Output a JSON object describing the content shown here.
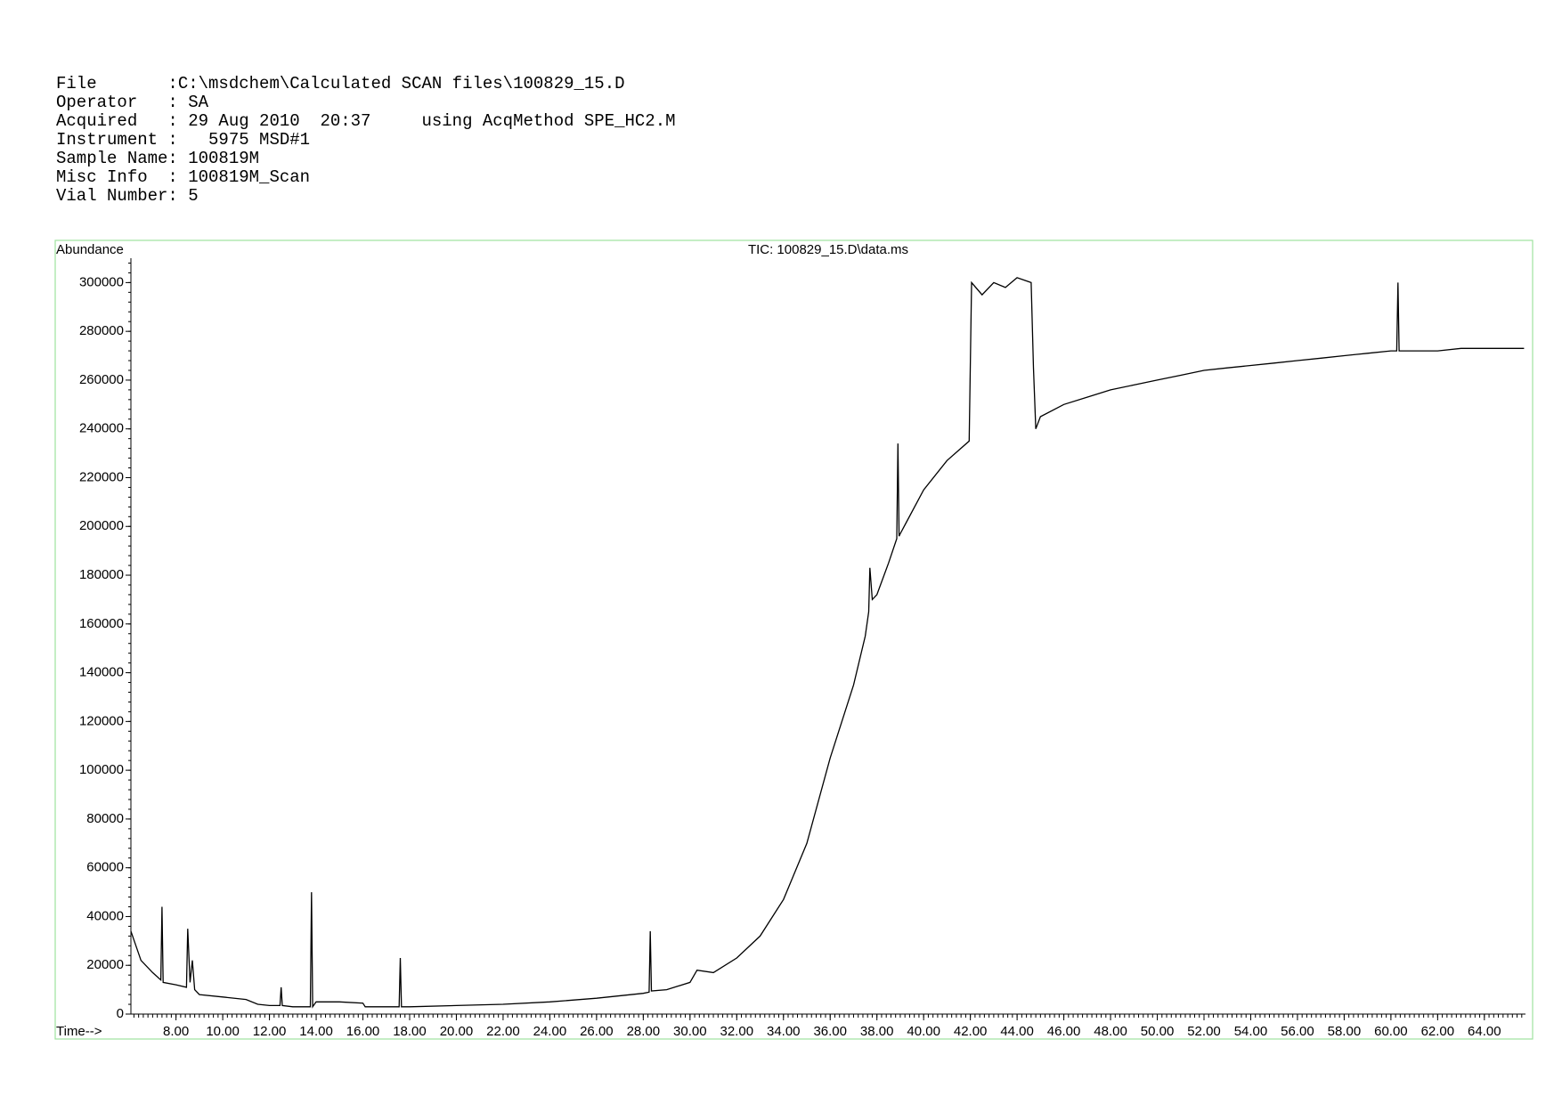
{
  "header": {
    "lines": [
      "File       :C:\\msdchem\\Calculated SCAN files\\100829_15.D",
      "Operator   : SA",
      "Acquired   : 29 Aug 2010  20:37     using AcqMethod SPE_HC2.M",
      "Instrument :   5975 MSD#1",
      "Sample Name: 100819M",
      "Misc Info  : 100819M_Scan",
      "Vial Number: 5"
    ]
  },
  "chart_data": {
    "type": "line",
    "title": "TIC: 100829_15.D\\data.ms",
    "y_label": "Abundance",
    "x_label": "Time-->",
    "color": "#000000",
    "frame_color": "#9ee39e",
    "label_color": "#2b2bd0",
    "xlim": [
      6.07,
      65.76
    ],
    "ylim": [
      0,
      310000
    ],
    "xticks": [
      {
        "value": 8,
        "label": "8.00"
      },
      {
        "value": 10,
        "label": "10.00"
      },
      {
        "value": 12,
        "label": "12.00"
      },
      {
        "value": 14,
        "label": "14.00"
      },
      {
        "value": 16,
        "label": "16.00"
      },
      {
        "value": 18,
        "label": "18.00"
      },
      {
        "value": 20,
        "label": "20.00"
      },
      {
        "value": 22,
        "label": "22.00"
      },
      {
        "value": 24,
        "label": "24.00"
      },
      {
        "value": 26,
        "label": "26.00"
      },
      {
        "value": 28,
        "label": "28.00"
      },
      {
        "value": 30,
        "label": "30.00"
      },
      {
        "value": 32,
        "label": "32.00"
      },
      {
        "value": 34,
        "label": "34.00"
      },
      {
        "value": 36,
        "label": "36.00"
      },
      {
        "value": 38,
        "label": "38.00"
      },
      {
        "value": 40,
        "label": "40.00"
      },
      {
        "value": 42,
        "label": "42.00"
      },
      {
        "value": 44,
        "label": "44.00"
      },
      {
        "value": 46,
        "label": "46.00"
      },
      {
        "value": 48,
        "label": "48.00"
      },
      {
        "value": 50,
        "label": "50.00"
      },
      {
        "value": 52,
        "label": "52.00"
      },
      {
        "value": 54,
        "label": "54.00"
      },
      {
        "value": 56,
        "label": "56.00"
      },
      {
        "value": 58,
        "label": "58.00"
      },
      {
        "value": 60,
        "label": "60.00"
      },
      {
        "value": 62,
        "label": "62.00"
      },
      {
        "value": 64,
        "label": "64.00"
      }
    ],
    "yticks": [
      0,
      20000,
      40000,
      60000,
      80000,
      100000,
      120000,
      140000,
      160000,
      180000,
      200000,
      220000,
      240000,
      260000,
      280000,
      300000
    ],
    "x": [
      6.07,
      6.5,
      7.0,
      7.35,
      7.4,
      7.45,
      8.0,
      8.45,
      8.5,
      8.6,
      8.7,
      8.8,
      9.0,
      10.0,
      11.0,
      11.5,
      12.0,
      12.45,
      12.5,
      12.55,
      13.0,
      13.75,
      13.8,
      13.85,
      14.0,
      15.0,
      16.0,
      16.1,
      17.0,
      17.55,
      17.6,
      17.65,
      18.0,
      20.0,
      22.0,
      24.0,
      26.0,
      28.0,
      28.25,
      28.3,
      28.35,
      29.0,
      30.0,
      30.3,
      31.0,
      32.0,
      33.0,
      34.0,
      35.0,
      36.0,
      37.0,
      37.5,
      37.65,
      37.7,
      37.8,
      38.0,
      38.5,
      38.85,
      38.9,
      38.95,
      39.0,
      40.0,
      41.0,
      41.95,
      42.05,
      42.5,
      43.0,
      43.5,
      44.0,
      44.6,
      44.7,
      44.8,
      45.0,
      46.0,
      47.0,
      48.0,
      49.0,
      50.0,
      51.0,
      52.0,
      53.0,
      54.0,
      55.0,
      56.0,
      57.0,
      58.0,
      59.0,
      60.0,
      60.25,
      60.3,
      60.35,
      61.0,
      62.0,
      63.0,
      64.0,
      65.0,
      65.7
    ],
    "values": [
      34000,
      22000,
      17000,
      14000,
      44000,
      13000,
      12000,
      11000,
      35000,
      13000,
      22000,
      10000,
      8000,
      7000,
      6000,
      4000,
      3500,
      3500,
      11000,
      3500,
      3000,
      3000,
      50000,
      3000,
      5000,
      5000,
      4500,
      3000,
      3000,
      3000,
      23000,
      3000,
      3000,
      3500,
      4000,
      5000,
      6500,
      8500,
      9000,
      34000,
      9500,
      10000,
      13000,
      18000,
      17000,
      23000,
      32000,
      47000,
      70000,
      105000,
      135000,
      155000,
      165000,
      183000,
      170000,
      172000,
      185000,
      195000,
      234000,
      196000,
      197000,
      215000,
      227000,
      235000,
      300000,
      295000,
      300000,
      298000,
      302000,
      300000,
      265000,
      240000,
      245000,
      250000,
      253000,
      256000,
      258000,
      260000,
      262000,
      264000,
      265000,
      266000,
      267000,
      268000,
      269000,
      270000,
      271000,
      272000,
      272000,
      300000,
      272000,
      272000,
      272000,
      273000,
      273000,
      273000,
      273000
    ]
  }
}
